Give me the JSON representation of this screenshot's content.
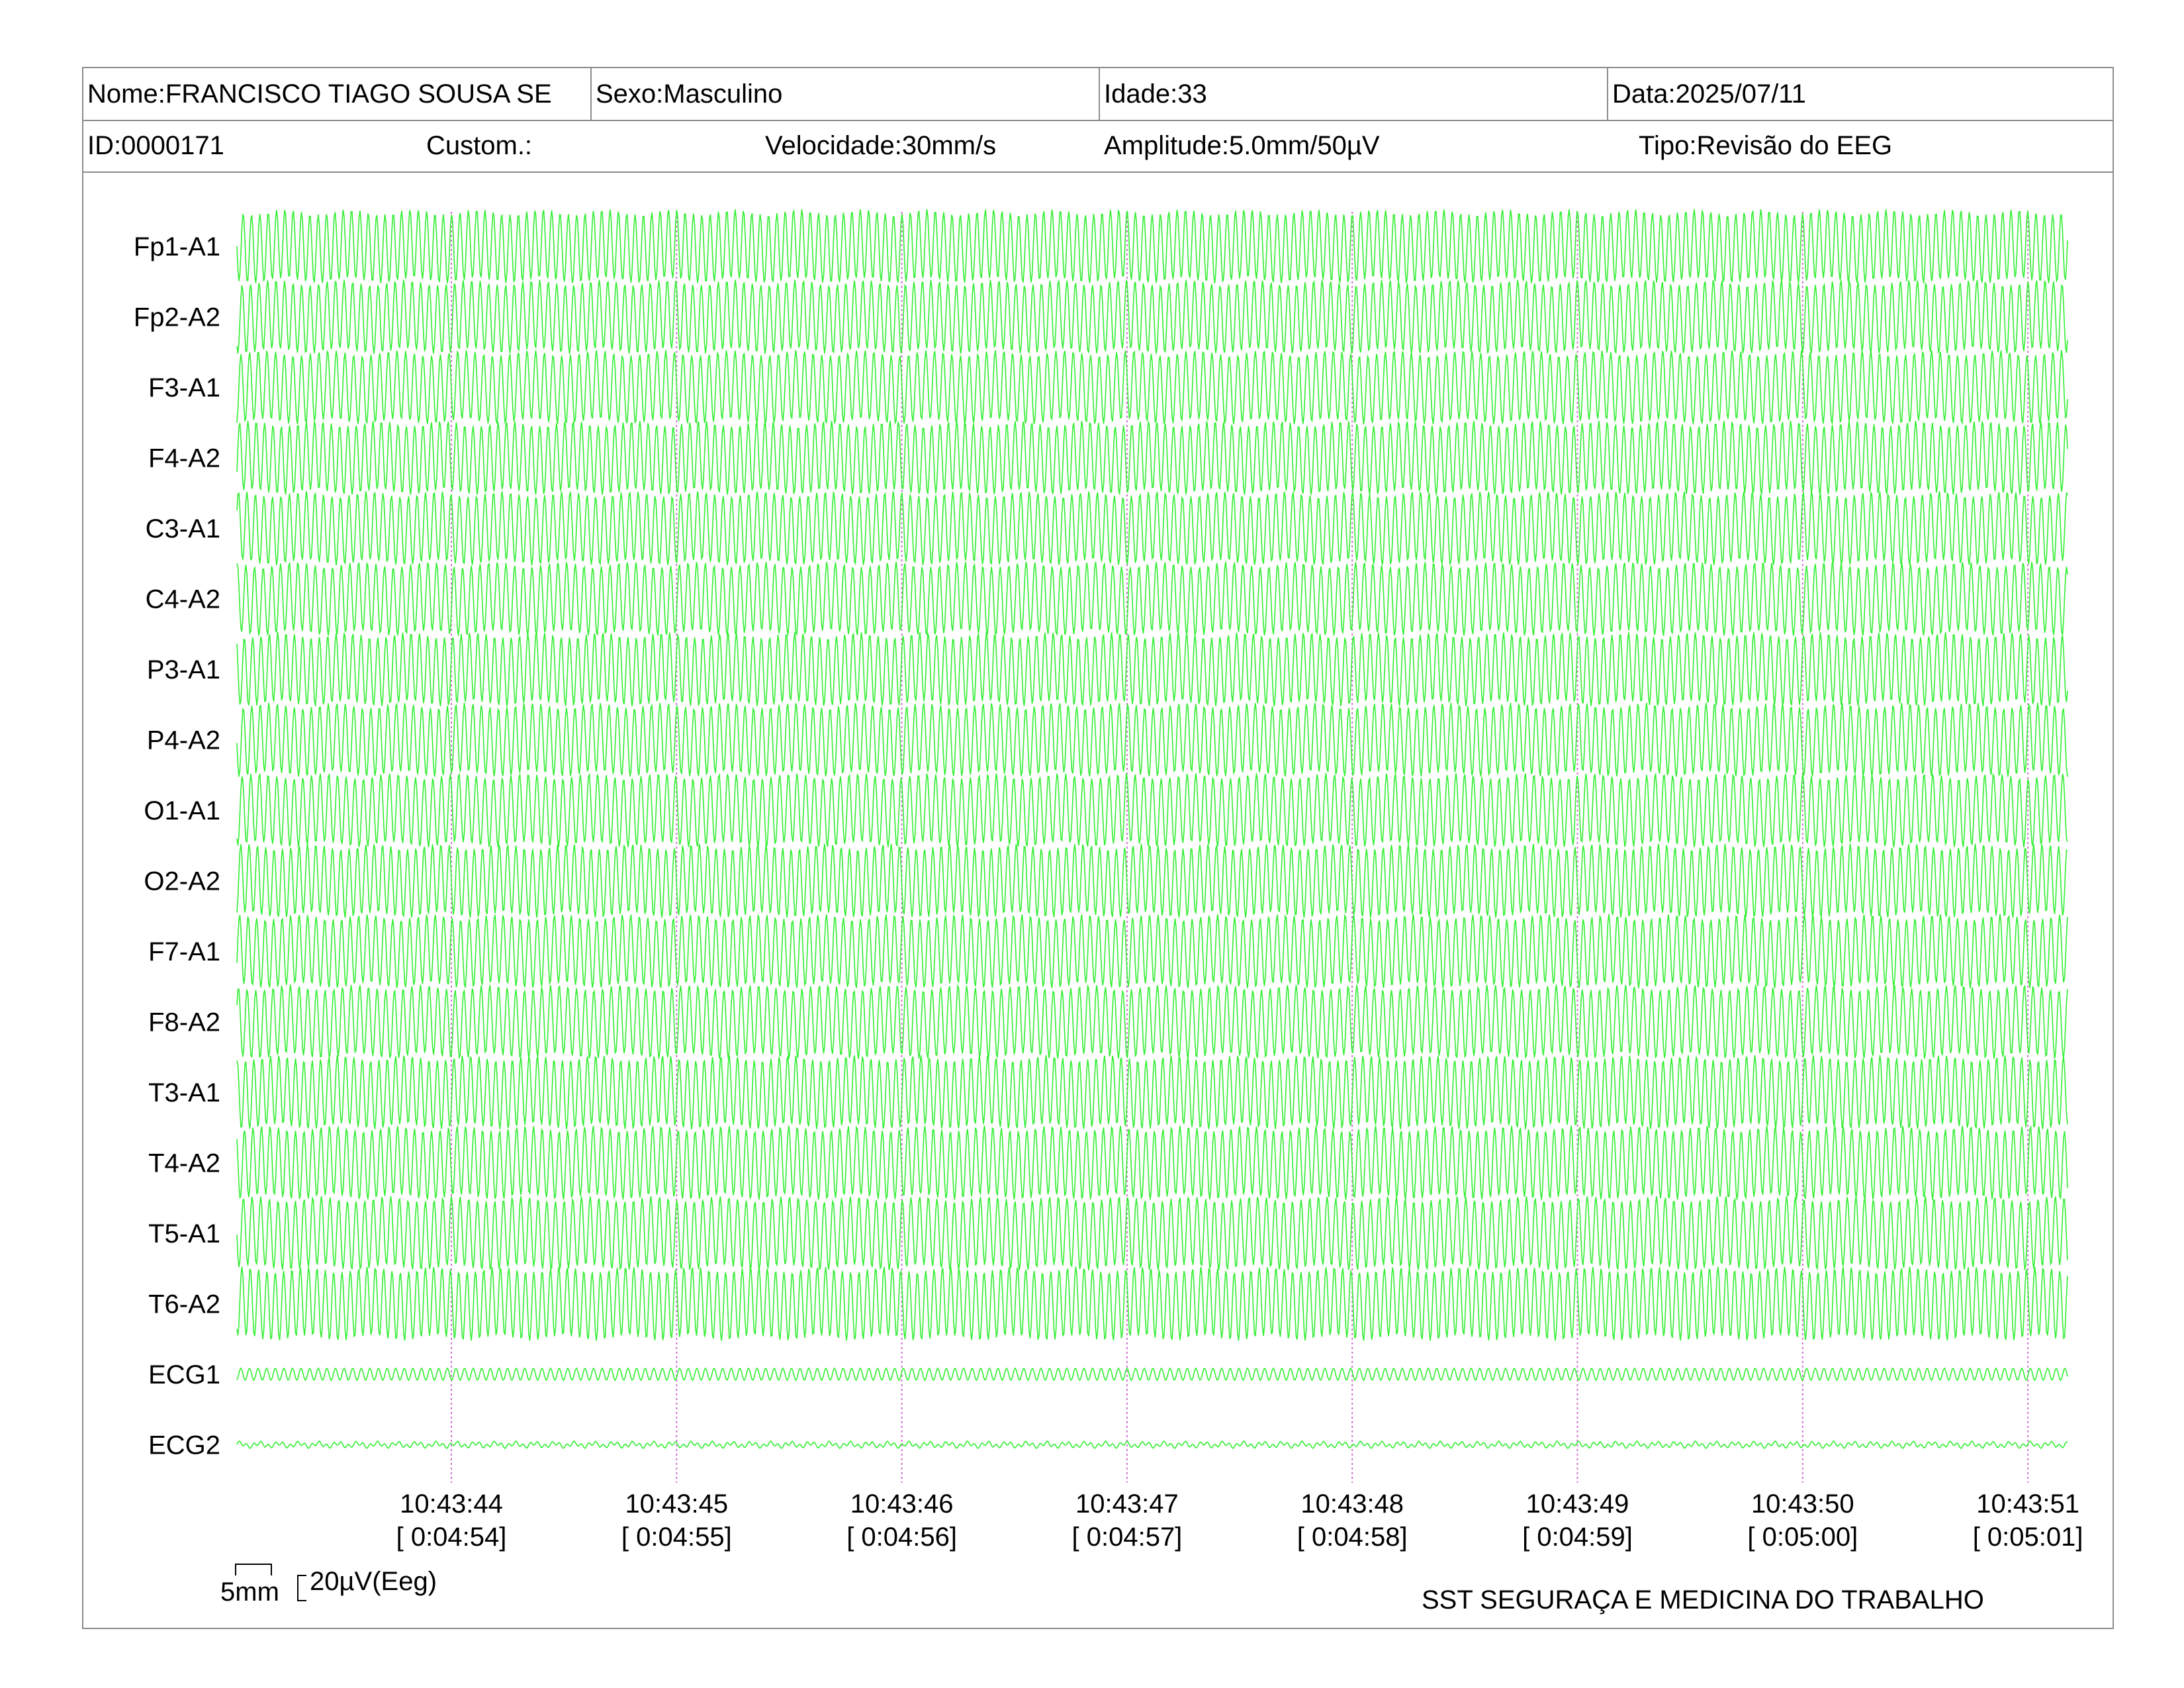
{
  "header": {
    "row1": {
      "name": "Nome:FRANCISCO TIAGO SOUSA SE",
      "sex": "Sexo:Masculino",
      "age": "Idade:33",
      "date": "Data:2025/07/11"
    },
    "row2": {
      "id": "ID:0000171",
      "custom": "Custom.:",
      "speed": "Velocidade:30mm/s",
      "amplitude": "Amplitude:5.0mm/50µV",
      "type": "Tipo:Revisão do EEG"
    }
  },
  "chart_data": {
    "type": "line",
    "channels": [
      "Fp1-A1",
      "Fp2-A2",
      "F3-A1",
      "F4-A2",
      "C3-A1",
      "C4-A2",
      "P3-A1",
      "P4-A2",
      "O1-A1",
      "O2-A2",
      "F7-A1",
      "F8-A2",
      "T3-A1",
      "T4-A2",
      "T5-A1",
      "T6-A2",
      "ECG1",
      "ECG2"
    ],
    "time_markers": [
      {
        "time": "10:43:44",
        "elapsed": "[ 0:04:54]"
      },
      {
        "time": "10:43:45",
        "elapsed": "[ 0:04:55]"
      },
      {
        "time": "10:43:46",
        "elapsed": "[ 0:04:56]"
      },
      {
        "time": "10:43:47",
        "elapsed": "[ 0:04:57]"
      },
      {
        "time": "10:43:48",
        "elapsed": "[ 0:04:58]"
      },
      {
        "time": "10:43:49",
        "elapsed": "[ 0:04:59]"
      },
      {
        "time": "10:43:50",
        "elapsed": "[ 0:05:00]"
      },
      {
        "time": "10:43:51",
        "elapsed": "[ 0:05:01]"
      }
    ],
    "trace_color": "#33ee33",
    "marker_color": "#d070d0"
  },
  "scale_bar": {
    "time_label": "5mm",
    "amp_label": "20µV(Eeg)"
  },
  "footer": {
    "company": "SST SEGURAÇA E MEDICINA DO TRABALHO"
  }
}
